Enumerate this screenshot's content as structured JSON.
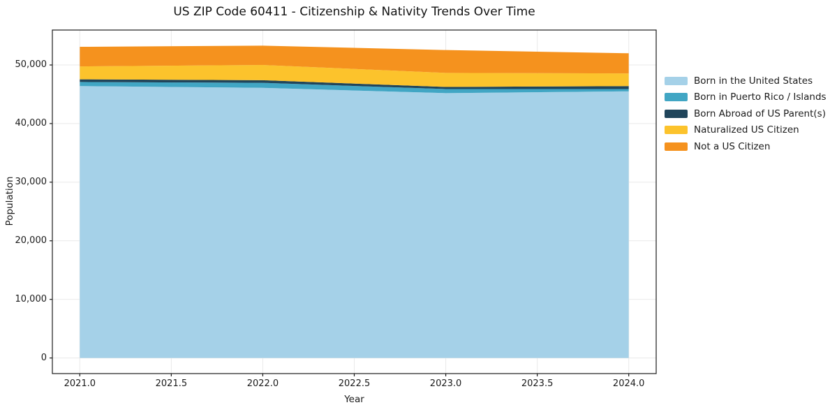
{
  "chart_data": {
    "type": "area",
    "stacked": true,
    "title": "US ZIP Code 60411 - Citizenship & Nativity Trends Over Time",
    "xlabel": "Year",
    "ylabel": "Population",
    "x": [
      2021,
      2022,
      2023,
      2024
    ],
    "series": [
      {
        "name": "Born in the United States",
        "color": "#A5D1E8",
        "values": [
          46400,
          46100,
          45200,
          45500
        ]
      },
      {
        "name": "Born in Puerto Rico / Islands",
        "color": "#41A6C4",
        "values": [
          700,
          850,
          700,
          400
        ]
      },
      {
        "name": "Born Abroad of US Parent(s)",
        "color": "#20455B",
        "values": [
          450,
          450,
          350,
          500
        ]
      },
      {
        "name": "Naturalized US Citizen",
        "color": "#FCC32C",
        "values": [
          2200,
          2600,
          2400,
          2150
        ]
      },
      {
        "name": "Not a US Citizen",
        "color": "#F5921E",
        "values": [
          3350,
          3300,
          3900,
          3450
        ]
      }
    ],
    "xlim": [
      2020.85,
      2024.15
    ],
    "ylim": [
      -2665,
      55965
    ],
    "xticks": {
      "values": [
        2021,
        2021.5,
        2022,
        2022.5,
        2023,
        2023.5,
        2024
      ],
      "labels": [
        "2021.0",
        "2021.5",
        "2022.0",
        "2022.5",
        "2023.0",
        "2023.5",
        "2024.0"
      ]
    },
    "yticks": {
      "values": [
        0,
        10000,
        20000,
        30000,
        40000,
        50000
      ],
      "labels": [
        "0",
        "10,000",
        "20,000",
        "30,000",
        "40,000",
        "50,000"
      ]
    },
    "grid": true,
    "legend_position": "right"
  },
  "colors": {
    "grid": "#E9E9E9",
    "spine": "#1A1A1A",
    "background": "#FFFFFF"
  }
}
